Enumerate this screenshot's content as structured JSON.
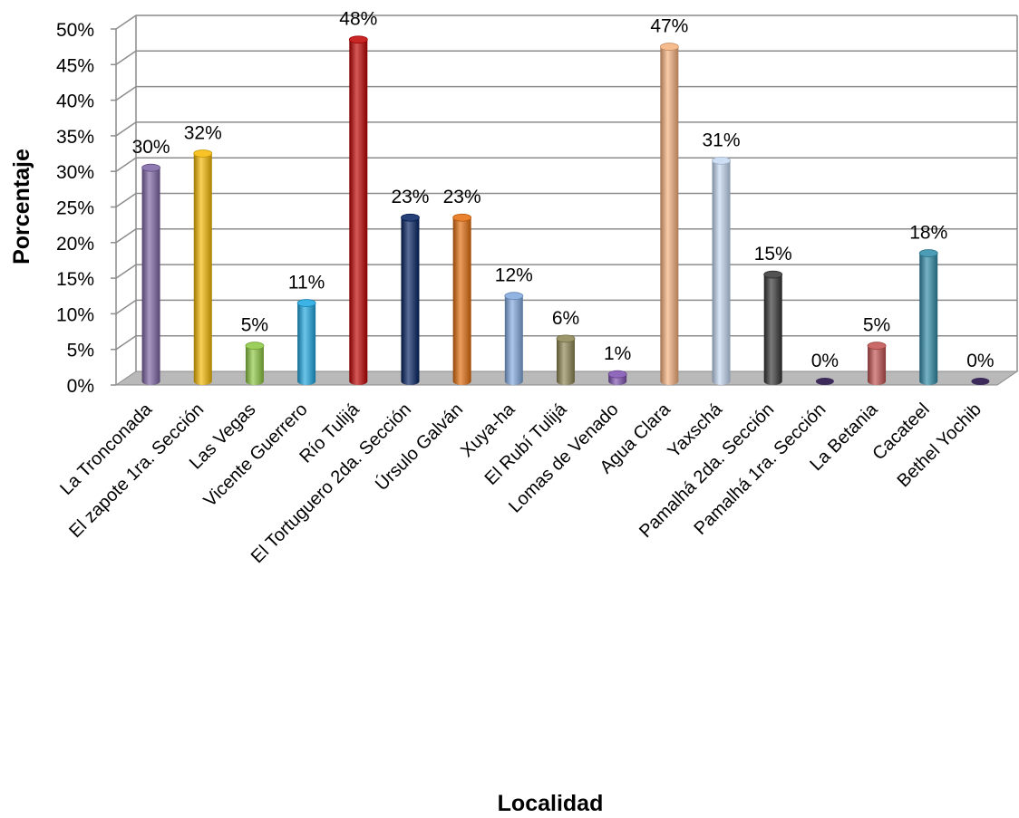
{
  "chart_data": {
    "type": "bar",
    "xlabel": "Localidad",
    "ylabel": "Porcentaje",
    "ylim": [
      0,
      50
    ],
    "y_ticks": [
      "0%",
      "5%",
      "10%",
      "15%",
      "20%",
      "25%",
      "30%",
      "35%",
      "40%",
      "45%",
      "50%"
    ],
    "grid": true,
    "legend": "none",
    "categories": [
      "La Tronconada",
      "El zapote 1ra. Sección",
      "Las Vegas",
      "Vicente Guerrero",
      "Río Tulijá",
      "El Tortuguero 2da. Sección",
      "Úrsulo Galván",
      "Xuya-ha",
      "El Rubí Tulijá",
      "Lomas de Venado",
      "Agua Clara",
      "Yaxschá",
      "Pamalhá 2da. Sección",
      "Pamalhá 1ra. Sección",
      "La Betania",
      "Cacateel",
      "Bethel Yochib"
    ],
    "values": [
      30,
      32,
      5,
      11,
      48,
      23,
      23,
      12,
      6,
      1,
      47,
      31,
      15,
      0,
      5,
      18,
      0
    ],
    "data_labels": [
      "30%",
      "32%",
      "5%",
      "11%",
      "48%",
      "23%",
      "23%",
      "12%",
      "6%",
      "1%",
      "47%",
      "31%",
      "15%",
      "0%",
      "5%",
      "18%",
      "0%"
    ],
    "colors": [
      "#7b62a3",
      "#f5b800",
      "#8cc63f",
      "#1ba6e0",
      "#c00000",
      "#001f5f",
      "#e46c0a",
      "#7fa7de",
      "#8d8451",
      "#7e4fb0",
      "#f6b07a",
      "#c4d8f3",
      "#333333",
      "#3c2a5a",
      "#c0504d",
      "#2e8aa8",
      "#3c2a5a"
    ]
  }
}
